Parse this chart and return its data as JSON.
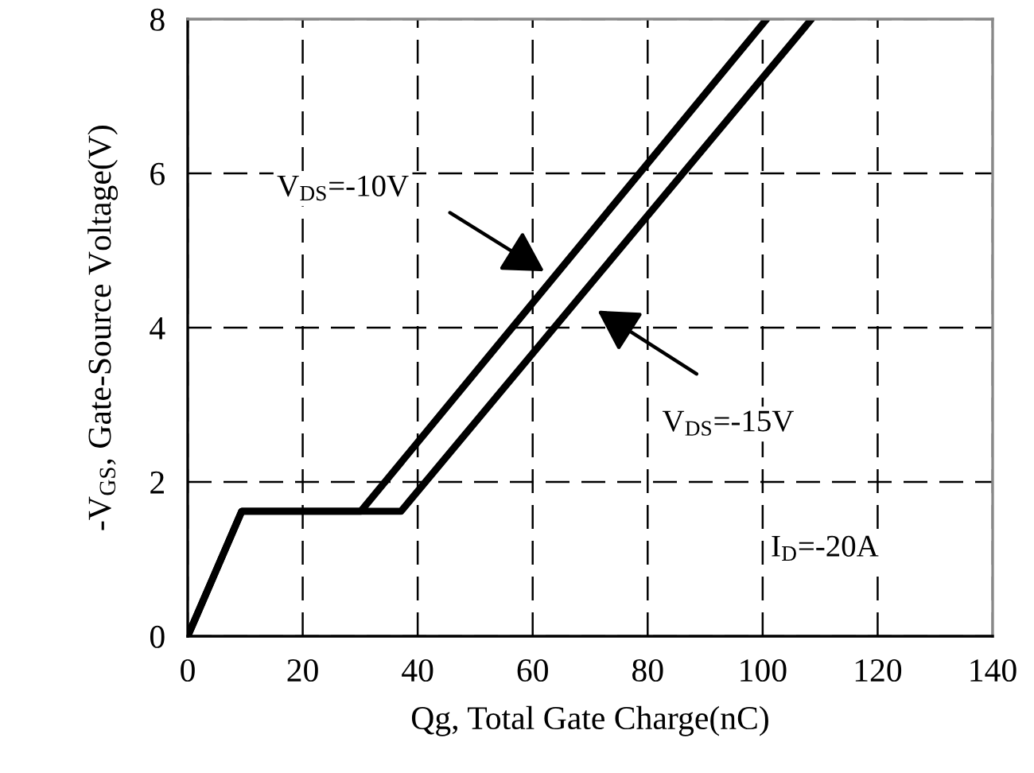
{
  "chart_data": {
    "type": "line",
    "xlabel": "Qg, Total Gate Charge(nC)",
    "ylabel": "-V$_{GS}$, Gate-Source Voltage(V)",
    "series": [
      {
        "color": "#000000",
        "x": [
          0,
          9.4,
          30.1,
          100.7
        ],
        "values": [
          0,
          1.62,
          1.62,
          8
        ]
      },
      {
        "color": "#000000",
        "x": [
          0,
          9.4,
          37.1,
          108.5
        ],
        "values": [
          0,
          1.62,
          1.62,
          8
        ]
      }
    ],
    "xlim": [
      0,
      140
    ],
    "xticks": [
      0,
      20,
      40,
      60,
      80,
      100,
      120,
      140
    ],
    "ylim": [
      0,
      8
    ],
    "yticks": [
      0,
      2,
      4,
      6,
      8
    ],
    "grid": true,
    "line_style": "solid",
    "marker": "none",
    "annotations": [
      "V$_{DS}$=-10V",
      "V$_{DS}$=-15V",
      "I$_{D}$=-20A"
    ]
  }
}
